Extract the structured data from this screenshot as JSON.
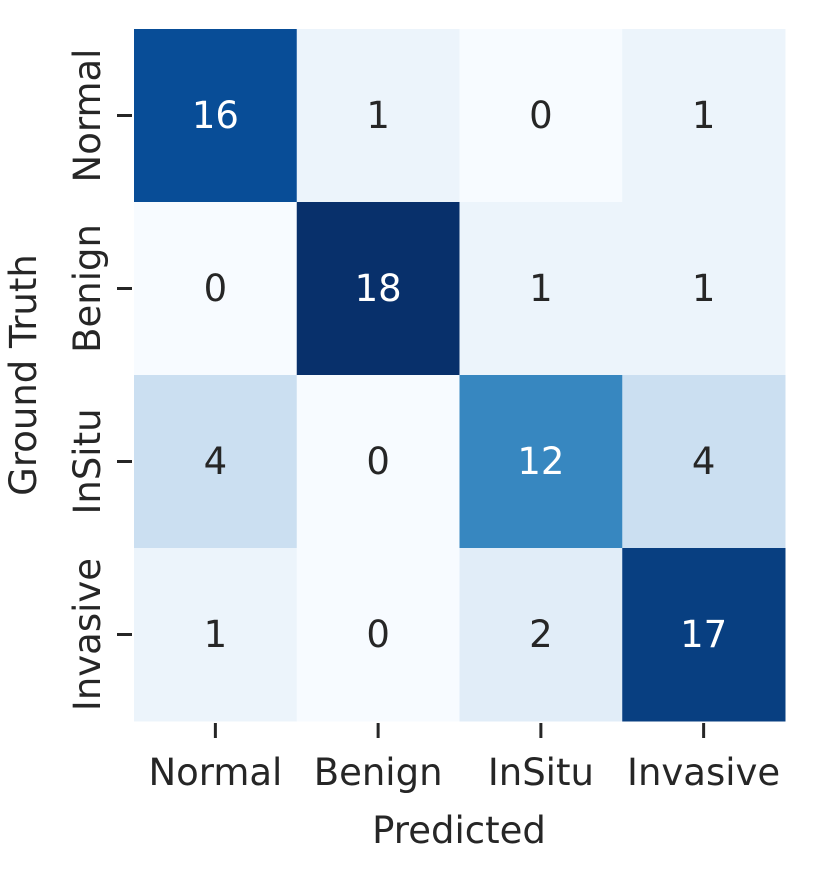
{
  "chart_data": {
    "type": "heatmap",
    "x_categories": [
      "Normal",
      "Benign",
      "InSitu",
      "Invasive"
    ],
    "y_categories": [
      "Normal",
      "Benign",
      "InSitu",
      "Invasive"
    ],
    "values": [
      [
        16,
        1,
        0,
        1
      ],
      [
        0,
        18,
        1,
        1
      ],
      [
        4,
        0,
        12,
        4
      ],
      [
        1,
        0,
        2,
        17
      ]
    ],
    "xlabel": "Predicted",
    "ylabel": "Ground Truth",
    "colormap": "Blues",
    "colorbar": false,
    "value_range": [
      0,
      18
    ]
  },
  "colors": {
    "low": "#f7fbff",
    "high": "#08306b",
    "text_dark": "#262626",
    "text_light": "#ffffff"
  }
}
